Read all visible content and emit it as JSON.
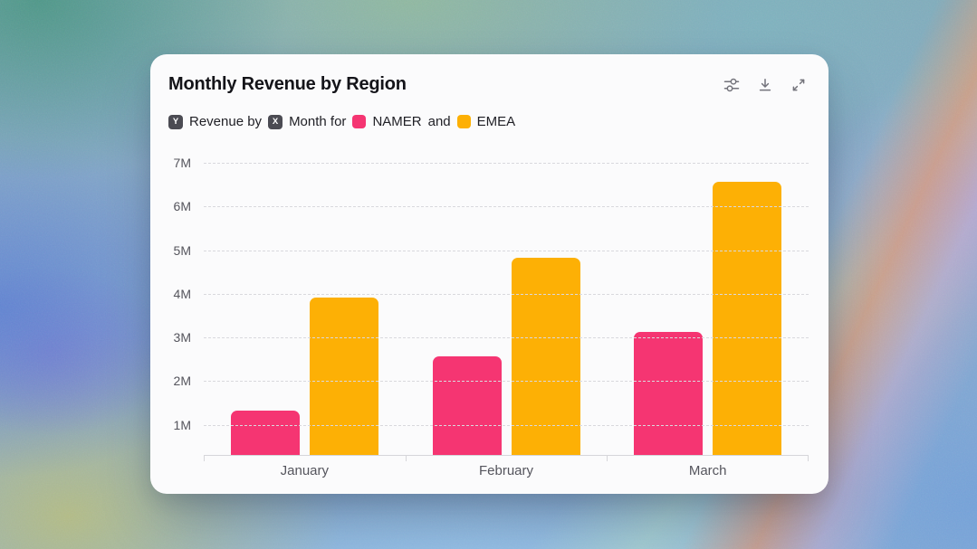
{
  "card": {
    "title": "Monthly Revenue by Region",
    "toolbar": {
      "filter_icon": "sliders-icon",
      "download_icon": "download-icon",
      "expand_icon": "expand-icon"
    },
    "subtitle": {
      "y_badge": "Y",
      "revenue_by": "Revenue by",
      "x_badge": "X",
      "month_for": "Month for",
      "and_word": "and"
    }
  },
  "chart_data": {
    "type": "bar",
    "title": "Monthly Revenue by Region",
    "categories": [
      "January",
      "February",
      "March"
    ],
    "series": [
      {
        "name": "NAMER",
        "color": "#f53572",
        "values": [
          1300000,
          2550000,
          3100000
        ]
      },
      {
        "name": "EMEA",
        "color": "#fdb005",
        "values": [
          3900000,
          4800000,
          6550000
        ]
      }
    ],
    "value_format": "millions",
    "ylabel": "Revenue",
    "xlabel": "Month",
    "ylim": [
      0,
      7300000
    ],
    "yticks": [
      {
        "value": 1000000,
        "label": "1M"
      },
      {
        "value": 2000000,
        "label": "2M"
      },
      {
        "value": 3000000,
        "label": "3M"
      },
      {
        "value": 4000000,
        "label": "4M"
      },
      {
        "value": 5000000,
        "label": "5M"
      },
      {
        "value": 6000000,
        "label": "6M"
      },
      {
        "value": 7000000,
        "label": "7M"
      }
    ],
    "grid": "horizontal-dashed",
    "legend_position": "subtitle-inline"
  },
  "colors": {
    "namer_pink": "#f53572",
    "emea_yellow": "#fdb005",
    "badge_background": "#4b4b53",
    "card_background": "#fbfbfc",
    "axis_label_text": "#55555d",
    "gridline": "#d9d9dd",
    "title_text": "#141419",
    "icon_gray": "#73737b"
  }
}
